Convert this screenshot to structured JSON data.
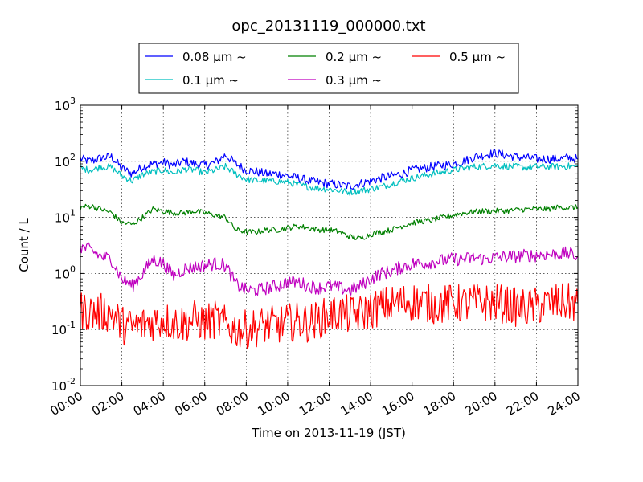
{
  "chart_data": {
    "type": "line",
    "title": "opc_20131119_000000.txt",
    "xlabel": "Time on 2013-11-19 (JST)",
    "ylabel": "Count / L",
    "y_scale": "log",
    "ylim": [
      0.01,
      1000
    ],
    "y_ticks": [
      {
        "value": 0.01,
        "base": "10",
        "exp": "-2"
      },
      {
        "value": 0.1,
        "base": "10",
        "exp": "-1"
      },
      {
        "value": 1,
        "base": "10",
        "exp": "0"
      },
      {
        "value": 10,
        "base": "10",
        "exp": "1"
      },
      {
        "value": 100,
        "base": "10",
        "exp": "2"
      },
      {
        "value": 1000,
        "base": "10",
        "exp": "3"
      }
    ],
    "x_ticks": [
      "00:00",
      "02:00",
      "04:00",
      "06:00",
      "08:00",
      "10:00",
      "12:00",
      "14:00",
      "16:00",
      "18:00",
      "20:00",
      "22:00",
      "24:00"
    ],
    "xlim_hours": [
      0,
      24
    ],
    "grid": true,
    "legend_placement": "top-center, outside plot",
    "x_hours": [
      0,
      0.5,
      1,
      1.5,
      2,
      2.5,
      3,
      3.5,
      4,
      4.5,
      5,
      5.5,
      6,
      6.5,
      7,
      7.5,
      8,
      8.5,
      9,
      9.5,
      10,
      10.5,
      11,
      11.5,
      12,
      12.5,
      13,
      13.5,
      14,
      14.5,
      15,
      15.5,
      16,
      16.5,
      17,
      17.5,
      18,
      18.5,
      19,
      19.5,
      20,
      20.5,
      21,
      21.5,
      22,
      22.5,
      23,
      23.5,
      24
    ],
    "series": [
      {
        "name": "0.08 μm ~",
        "color": "#0000ff",
        "noise": 0.08,
        "values": [
          110,
          100,
          115,
          120,
          75,
          60,
          80,
          90,
          95,
          85,
          100,
          90,
          85,
          95,
          130,
          90,
          70,
          65,
          60,
          60,
          55,
          50,
          45,
          42,
          40,
          38,
          36,
          40,
          45,
          50,
          55,
          60,
          70,
          75,
          80,
          85,
          90,
          100,
          120,
          130,
          140,
          130,
          120,
          115,
          110,
          110,
          110,
          115,
          110
        ]
      },
      {
        "name": "0.1 μm ~",
        "color": "#00bfbf",
        "noise": 0.06,
        "values": [
          75,
          70,
          80,
          78,
          55,
          45,
          58,
          65,
          70,
          62,
          72,
          70,
          62,
          70,
          80,
          60,
          48,
          45,
          45,
          44,
          42,
          38,
          35,
          33,
          32,
          30,
          28,
          30,
          32,
          35,
          40,
          45,
          50,
          55,
          60,
          65,
          70,
          75,
          80,
          82,
          85,
          82,
          80,
          78,
          80,
          80,
          80,
          82,
          80
        ]
      },
      {
        "name": "0.2 μm ~",
        "color": "#008000",
        "noise": 0.05,
        "values": [
          15,
          16,
          14,
          12,
          8,
          7.5,
          10,
          14,
          13,
          12,
          12,
          13,
          12,
          11,
          10,
          6,
          5.5,
          5.5,
          6,
          6,
          6.5,
          7,
          6.5,
          6,
          6,
          5.5,
          4.5,
          4.2,
          5,
          5.5,
          6,
          7,
          8,
          8.5,
          9,
          10,
          11,
          12,
          12.5,
          13,
          13,
          13,
          13.5,
          14,
          14,
          14,
          15,
          15,
          15
        ]
      },
      {
        "name": "0.3 μm ~",
        "color": "#bf00bf",
        "noise": 0.12,
        "values": [
          3,
          2.6,
          2,
          1.8,
          0.8,
          0.6,
          1.0,
          1.8,
          1.5,
          0.9,
          1.2,
          1.3,
          1.4,
          1.5,
          1.4,
          0.65,
          0.5,
          0.5,
          0.55,
          0.6,
          0.7,
          0.7,
          0.6,
          0.55,
          0.6,
          0.55,
          0.5,
          0.6,
          0.8,
          1.0,
          1.1,
          1.3,
          1.5,
          1.5,
          1.6,
          1.7,
          1.8,
          1.8,
          1.9,
          1.8,
          1.9,
          2.0,
          2.0,
          2.1,
          2.1,
          2.2,
          2.2,
          2.3,
          2.0
        ]
      },
      {
        "name": "0.5 μm ~",
        "color": "#ff0000",
        "noise": 0.35,
        "values": [
          0.22,
          0.2,
          0.2,
          0.2,
          0.12,
          0.11,
          0.12,
          0.14,
          0.15,
          0.13,
          0.13,
          0.15,
          0.13,
          0.15,
          0.12,
          0.1,
          0.1,
          0.11,
          0.12,
          0.12,
          0.13,
          0.14,
          0.13,
          0.15,
          0.18,
          0.2,
          0.18,
          0.19,
          0.22,
          0.26,
          0.28,
          0.3,
          0.32,
          0.3,
          0.28,
          0.28,
          0.3,
          0.28,
          0.3,
          0.3,
          0.3,
          0.28,
          0.25,
          0.24,
          0.26,
          0.28,
          0.3,
          0.3,
          0.28
        ]
      }
    ]
  }
}
